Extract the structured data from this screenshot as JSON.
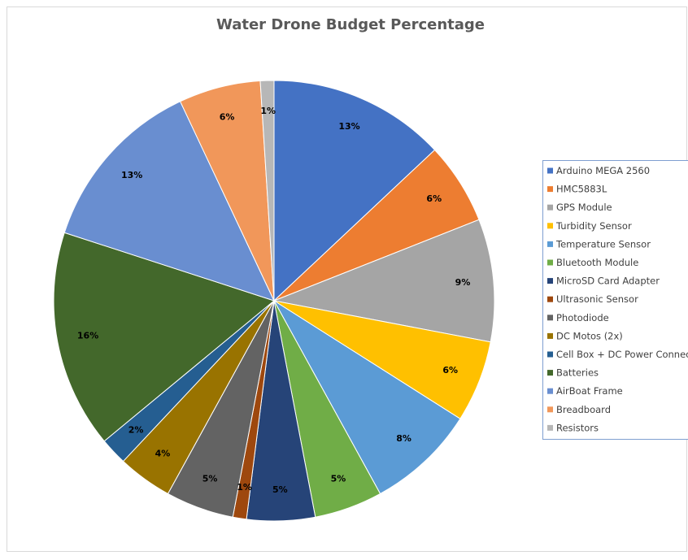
{
  "chart_data": {
    "type": "pie",
    "title": "Water Drone Budget Percentage",
    "categories": [
      "Arduino MEGA 2560",
      "HMC5883L",
      "GPS Module",
      "Turbidity Sensor",
      "Temperature Sensor",
      "Bluetooth Module",
      "MicroSD Card Adapter",
      "Ultrasonic Sensor",
      "Photodiode",
      "DC Motos (2x)",
      "Cell Box + DC Power Connector",
      "Batteries",
      "AirBoat Frame",
      "Breadboard",
      "Resistors"
    ],
    "values": [
      13,
      6,
      9,
      6,
      8,
      5,
      5,
      1,
      5,
      4,
      2,
      16,
      13,
      6,
      1
    ],
    "value_labels": [
      "13%",
      "6%",
      "9%",
      "6%",
      "8%",
      "5%",
      "5%",
      "1%",
      "5%",
      "4%",
      "2%",
      "16%",
      "13%",
      "6%",
      "1%"
    ],
    "colors": [
      "#4472C4",
      "#ED7D31",
      "#A5A5A5",
      "#FFC000",
      "#5B9BD5",
      "#70AD47",
      "#264478",
      "#9E480E",
      "#636363",
      "#997300",
      "#255E91",
      "#43682B",
      "#698ED0",
      "#F1975A",
      "#B7B7B7"
    ],
    "legend": "right"
  }
}
